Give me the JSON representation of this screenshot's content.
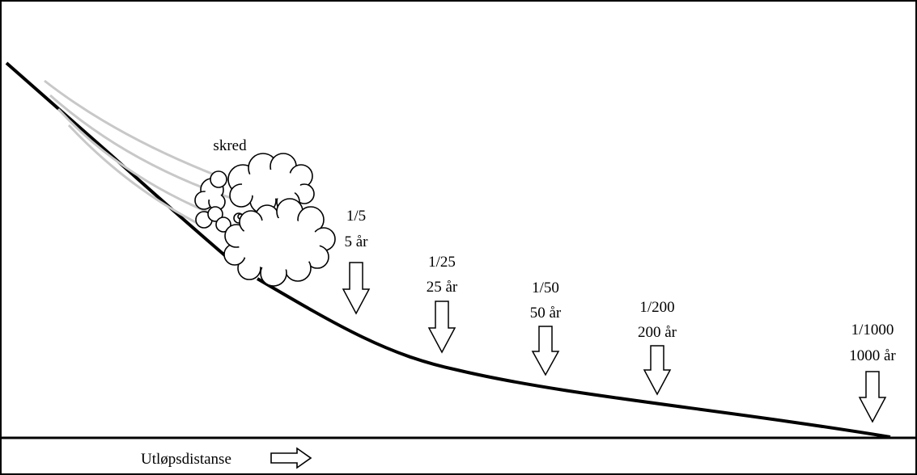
{
  "diagram": {
    "avalanche_label": "skred",
    "axis_label": "Utløpsdistanse",
    "return_periods": [
      {
        "fraction": "1/5",
        "years": "5 år"
      },
      {
        "fraction": "1/25",
        "years": "25 år"
      },
      {
        "fraction": "1/50",
        "years": "50 år"
      },
      {
        "fraction": "1/200",
        "years": "200 år"
      },
      {
        "fraction": "1/1000",
        "years": "1000 år"
      }
    ],
    "colors": {
      "line": "#000000",
      "trail": "#c8c8c8",
      "background": "#ffffff"
    }
  }
}
